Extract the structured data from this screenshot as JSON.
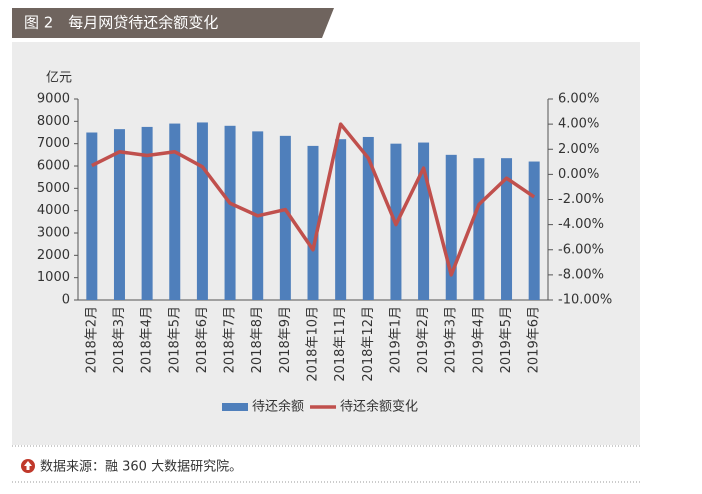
{
  "chart_data": {
    "type": "bar-line",
    "title": "图 2　每月网贷待还余额变化",
    "y_label": "亿元",
    "source": "数据来源：融 360 大数据研究院。",
    "categories": [
      "2018年2月",
      "2018年3月",
      "2018年4月",
      "2018年5月",
      "2018年6月",
      "2018年7月",
      "2018年8月",
      "2018年9月",
      "2018年10月",
      "2018年11月",
      "2018年12月",
      "2019年1月",
      "2019年2月",
      "2019年3月",
      "2019年4月",
      "2019年5月",
      "2019年6月"
    ],
    "series": [
      {
        "name": "待还余额",
        "type": "bar",
        "color": "#4f7fbb",
        "values": [
          7500,
          7650,
          7750,
          7900,
          7950,
          7800,
          7550,
          7350,
          6900,
          7200,
          7300,
          7000,
          7050,
          6500,
          6350,
          6350,
          6200
        ]
      },
      {
        "name": "待还余额变化",
        "type": "line",
        "axis": "y2",
        "color": "#c0504d",
        "values": [
          0.7,
          1.8,
          1.5,
          1.8,
          0.6,
          -2.3,
          -3.3,
          -2.8,
          -6.0,
          4.0,
          1.3,
          -4.0,
          0.5,
          -8.0,
          -2.4,
          -0.3,
          -1.8
        ]
      }
    ],
    "ylim": [
      0,
      9000
    ],
    "yticks": [
      0,
      1000,
      2000,
      3000,
      4000,
      5000,
      6000,
      7000,
      8000,
      9000
    ],
    "y2lim": [
      -10,
      6
    ],
    "y2ticks": [
      {
        "value": -10,
        "label": "-10.00%"
      },
      {
        "value": -8,
        "label": "-8.00%"
      },
      {
        "value": -6,
        "label": "-6.00%"
      },
      {
        "value": -4,
        "label": "-4.00%"
      },
      {
        "value": -2,
        "label": "-2.00%"
      },
      {
        "value": 0,
        "label": "0.00%"
      },
      {
        "value": 2,
        "label": "2.00%"
      },
      {
        "value": 4,
        "label": "4.00%"
      },
      {
        "value": 6,
        "label": "6.00%"
      }
    ],
    "legend": "bottom"
  }
}
